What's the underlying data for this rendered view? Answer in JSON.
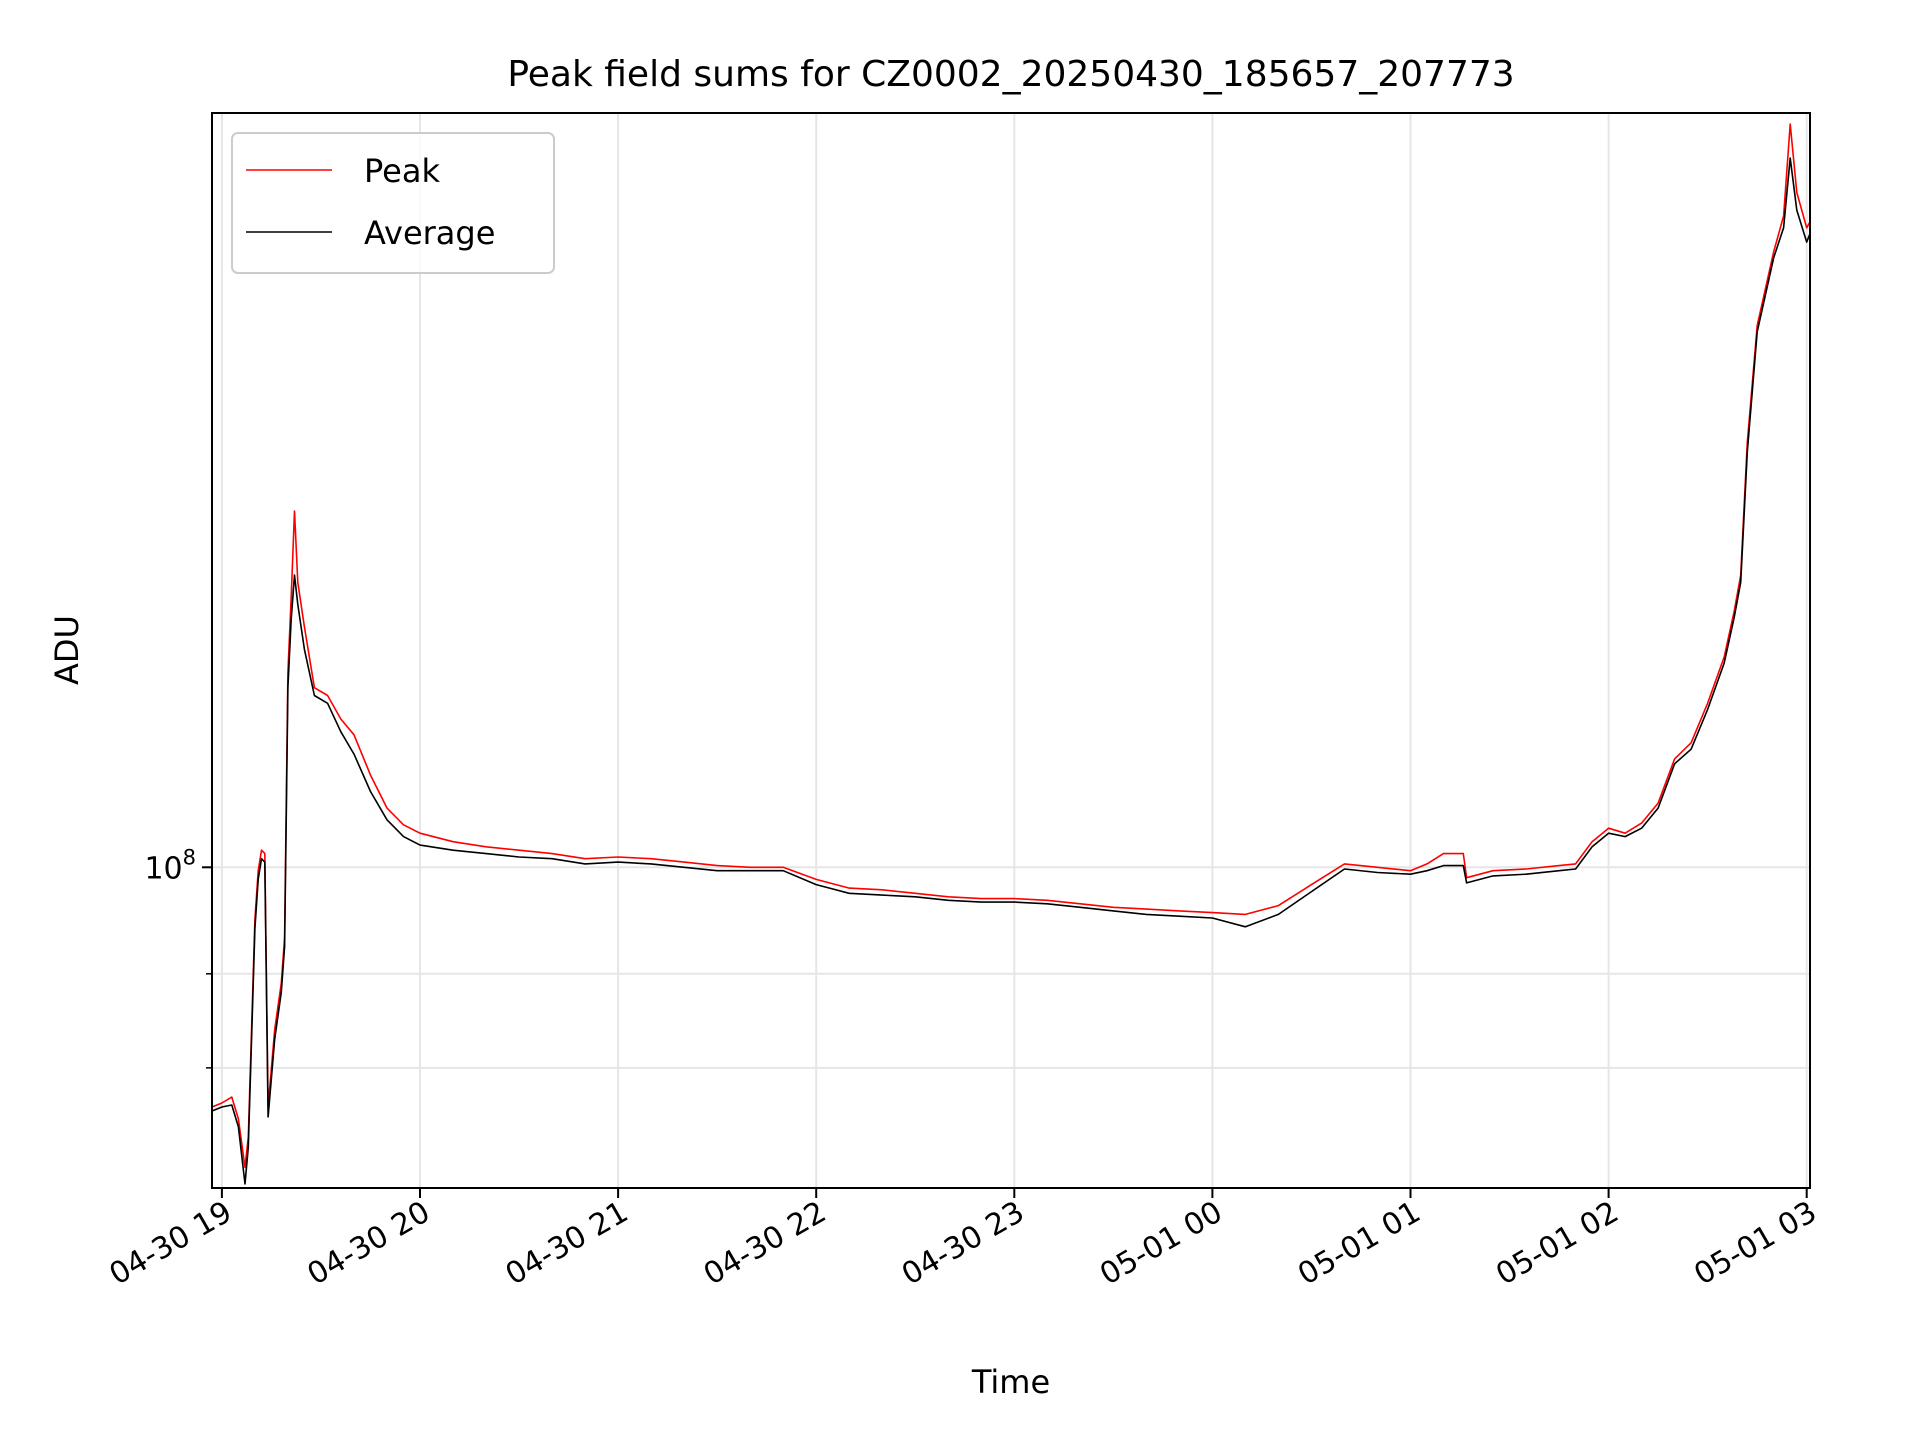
{
  "chart_data": {
    "type": "line",
    "title": "Peak field sums for CZ0002_20250430_185657_207773",
    "xlabel": "Time",
    "ylabel": "ADU",
    "yscale": "log",
    "ylim": [
      83000000,
      155000000
    ],
    "xlim": [
      "04-30 18:57",
      "05-01 03:01"
    ],
    "grid": true,
    "legend_position": "top-left",
    "x_ticks": [
      "04-30 19",
      "04-30 20",
      "04-30 21",
      "04-30 22",
      "04-30 23",
      "05-01 00",
      "05-01 01",
      "05-01 02",
      "05-01 03"
    ],
    "y_tick_labels": [
      {
        "value": 100000000,
        "base": "10",
        "exponent": "8"
      }
    ],
    "y_minor_ticks": [
      94000000,
      89000000
    ],
    "series": [
      {
        "name": "Peak",
        "color": "#ff0000",
        "points": [
          [
            "04-30 18:57",
            87000000
          ],
          [
            "04-30 19:00",
            87200000
          ],
          [
            "04-30 19:03",
            87500000
          ],
          [
            "04-30 19:05",
            86400000
          ],
          [
            "04-30 19:07",
            84000000
          ],
          [
            "04-30 19:08",
            85500000
          ],
          [
            "04-30 19:10",
            97000000
          ],
          [
            "04-30 19:11",
            99800000
          ],
          [
            "04-30 19:12",
            101000000
          ],
          [
            "04-30 19:13",
            100800000
          ],
          [
            "04-30 19:14",
            87000000
          ],
          [
            "04-30 19:16",
            91000000
          ],
          [
            "04-30 19:18",
            93500000
          ],
          [
            "04-30 19:19",
            96000000
          ],
          [
            "04-30 19:20",
            112000000
          ],
          [
            "04-30 19:21",
            117000000
          ],
          [
            "04-30 19:22",
            123000000
          ],
          [
            "04-30 19:23",
            118000000
          ],
          [
            "04-30 19:25",
            115000000
          ],
          [
            "04-30 19:28",
            111000000
          ],
          [
            "04-30 19:32",
            110500000
          ],
          [
            "04-30 19:36",
            109000000
          ],
          [
            "04-30 19:40",
            108000000
          ],
          [
            "04-30 19:45",
            105500000
          ],
          [
            "04-30 19:50",
            103500000
          ],
          [
            "04-30 19:55",
            102500000
          ],
          [
            "04-30 20:00",
            102000000
          ],
          [
            "04-30 20:10",
            101500000
          ],
          [
            "04-30 20:20",
            101200000
          ],
          [
            "04-30 20:30",
            101000000
          ],
          [
            "04-30 20:40",
            100800000
          ],
          [
            "04-30 20:50",
            100500000
          ],
          [
            "04-30 21:00",
            100600000
          ],
          [
            "04-30 21:10",
            100500000
          ],
          [
            "04-30 21:20",
            100300000
          ],
          [
            "04-30 21:30",
            100100000
          ],
          [
            "04-30 21:40",
            100000000
          ],
          [
            "04-30 21:50",
            100000000
          ],
          [
            "04-30 22:00",
            99300000
          ],
          [
            "04-30 22:10",
            98800000
          ],
          [
            "04-30 22:20",
            98700000
          ],
          [
            "04-30 22:30",
            98500000
          ],
          [
            "04-30 22:40",
            98300000
          ],
          [
            "04-30 22:50",
            98200000
          ],
          [
            "04-30 23:00",
            98200000
          ],
          [
            "04-30 23:10",
            98100000
          ],
          [
            "04-30 23:20",
            97900000
          ],
          [
            "04-30 23:30",
            97700000
          ],
          [
            "04-30 23:40",
            97600000
          ],
          [
            "04-30 23:50",
            97500000
          ],
          [
            "05-01 00:00",
            97400000
          ],
          [
            "05-01 00:10",
            97300000
          ],
          [
            "05-01 00:20",
            97800000
          ],
          [
            "05-01 00:30",
            99000000
          ],
          [
            "05-01 00:40",
            100200000
          ],
          [
            "05-01 00:50",
            100000000
          ],
          [
            "05-01 01:00",
            99800000
          ],
          [
            "05-01 01:05",
            100200000
          ],
          [
            "05-01 01:10",
            100800000
          ],
          [
            "05-01 01:16",
            100800000
          ],
          [
            "05-01 01:17",
            99400000
          ],
          [
            "05-01 01:25",
            99800000
          ],
          [
            "05-01 01:35",
            99900000
          ],
          [
            "05-01 01:45",
            100100000
          ],
          [
            "05-01 01:50",
            100200000
          ],
          [
            "05-01 01:55",
            101500000
          ],
          [
            "05-01 02:00",
            102300000
          ],
          [
            "05-01 02:05",
            102000000
          ],
          [
            "05-01 02:10",
            102600000
          ],
          [
            "05-01 02:15",
            103800000
          ],
          [
            "05-01 02:20",
            106500000
          ],
          [
            "05-01 02:25",
            107500000
          ],
          [
            "05-01 02:30",
            110000000
          ],
          [
            "05-01 02:35",
            113000000
          ],
          [
            "05-01 02:38",
            116000000
          ],
          [
            "05-01 02:40",
            118500000
          ],
          [
            "05-01 02:42",
            128000000
          ],
          [
            "05-01 02:45",
            137000000
          ],
          [
            "05-01 02:50",
            143000000
          ],
          [
            "05-01 02:53",
            146000000
          ],
          [
            "05-01 02:55",
            154000000
          ],
          [
            "05-01 02:57",
            148000000
          ],
          [
            "05-01 03:00",
            145000000
          ],
          [
            "05-01 03:01",
            145500000
          ]
        ]
      },
      {
        "name": "Average",
        "color": "#000000",
        "points": [
          [
            "04-30 18:57",
            86800000
          ],
          [
            "04-30 19:00",
            87000000
          ],
          [
            "04-30 19:03",
            87100000
          ],
          [
            "04-30 19:05",
            86000000
          ],
          [
            "04-30 19:07",
            83200000
          ],
          [
            "04-30 19:08",
            85000000
          ],
          [
            "04-30 19:10",
            96500000
          ],
          [
            "04-30 19:11",
            99300000
          ],
          [
            "04-30 19:12",
            100500000
          ],
          [
            "04-30 19:13",
            100300000
          ],
          [
            "04-30 19:14",
            86500000
          ],
          [
            "04-30 19:16",
            90500000
          ],
          [
            "04-30 19:18",
            93000000
          ],
          [
            "04-30 19:19",
            95500000
          ],
          [
            "04-30 19:20",
            111000000
          ],
          [
            "04-30 19:21",
            115500000
          ],
          [
            "04-30 19:22",
            118500000
          ],
          [
            "04-30 19:23",
            116500000
          ],
          [
            "04-30 19:25",
            113500000
          ],
          [
            "04-30 19:28",
            110500000
          ],
          [
            "04-30 19:32",
            110000000
          ],
          [
            "04-30 19:36",
            108200000
          ],
          [
            "04-30 19:40",
            106800000
          ],
          [
            "04-30 19:45",
            104500000
          ],
          [
            "04-30 19:50",
            102800000
          ],
          [
            "04-30 19:55",
            101800000
          ],
          [
            "04-30 20:00",
            101300000
          ],
          [
            "04-30 20:10",
            101000000
          ],
          [
            "04-30 20:20",
            100800000
          ],
          [
            "04-30 20:30",
            100600000
          ],
          [
            "04-30 20:40",
            100500000
          ],
          [
            "04-30 20:50",
            100200000
          ],
          [
            "04-30 21:00",
            100300000
          ],
          [
            "04-30 21:10",
            100200000
          ],
          [
            "04-30 21:20",
            100000000
          ],
          [
            "04-30 21:30",
            99800000
          ],
          [
            "04-30 21:40",
            99800000
          ],
          [
            "04-30 21:50",
            99800000
          ],
          [
            "04-30 22:00",
            99000000
          ],
          [
            "04-30 22:10",
            98500000
          ],
          [
            "04-30 22:20",
            98400000
          ],
          [
            "04-30 22:30",
            98300000
          ],
          [
            "04-30 22:40",
            98100000
          ],
          [
            "04-30 22:50",
            98000000
          ],
          [
            "04-30 23:00",
            98000000
          ],
          [
            "04-30 23:10",
            97900000
          ],
          [
            "04-30 23:20",
            97700000
          ],
          [
            "04-30 23:30",
            97500000
          ],
          [
            "04-30 23:40",
            97300000
          ],
          [
            "04-30 23:50",
            97200000
          ],
          [
            "05-01 00:00",
            97100000
          ],
          [
            "05-01 00:10",
            96600000
          ],
          [
            "05-01 00:20",
            97300000
          ],
          [
            "05-01 00:30",
            98600000
          ],
          [
            "05-01 00:40",
            99900000
          ],
          [
            "05-01 00:50",
            99700000
          ],
          [
            "05-01 01:00",
            99600000
          ],
          [
            "05-01 01:05",
            99800000
          ],
          [
            "05-01 01:10",
            100100000
          ],
          [
            "05-01 01:16",
            100100000
          ],
          [
            "05-01 01:17",
            99100000
          ],
          [
            "05-01 01:25",
            99500000
          ],
          [
            "05-01 01:35",
            99600000
          ],
          [
            "05-01 01:45",
            99800000
          ],
          [
            "05-01 01:50",
            99900000
          ],
          [
            "05-01 01:55",
            101200000
          ],
          [
            "05-01 02:00",
            102000000
          ],
          [
            "05-01 02:05",
            101800000
          ],
          [
            "05-01 02:10",
            102300000
          ],
          [
            "05-01 02:15",
            103500000
          ],
          [
            "05-01 02:20",
            106200000
          ],
          [
            "05-01 02:25",
            107100000
          ],
          [
            "05-01 02:30",
            109600000
          ],
          [
            "05-01 02:35",
            112600000
          ],
          [
            "05-01 02:38",
            115600000
          ],
          [
            "05-01 02:40",
            118000000
          ],
          [
            "05-01 02:42",
            127300000
          ],
          [
            "05-01 02:45",
            136500000
          ],
          [
            "05-01 02:50",
            142500000
          ],
          [
            "05-01 02:53",
            145000000
          ],
          [
            "05-01 02:55",
            151000000
          ],
          [
            "05-01 02:57",
            146500000
          ],
          [
            "05-01 03:00",
            143800000
          ],
          [
            "05-01 03:01",
            144500000
          ]
        ]
      }
    ]
  }
}
